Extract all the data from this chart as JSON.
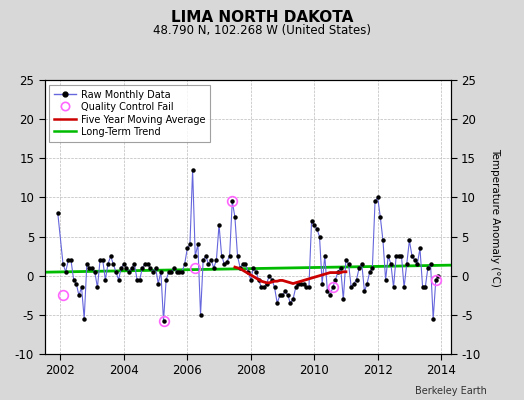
{
  "title": "LIMA NORTH DAKOTA",
  "subtitle": "48.790 N, 102.268 W (United States)",
  "ylabel_right": "Temperature Anomaly (°C)",
  "watermark": "Berkeley Earth",
  "xlim": [
    2001.5,
    2014.3
  ],
  "ylim": [
    -10,
    25
  ],
  "yticks_left": [
    -10,
    -5,
    0,
    5,
    10,
    15,
    20,
    25
  ],
  "yticks_right": [
    -10,
    -5,
    0,
    5,
    10,
    15,
    20,
    25
  ],
  "xticks": [
    2002,
    2004,
    2006,
    2008,
    2010,
    2012,
    2014
  ],
  "bg_color": "#d8d8d8",
  "plot_bg_color": "#ffffff",
  "raw_color": "#6666dd",
  "raw_marker_color": "#000000",
  "qc_fail_color": "#ff66ff",
  "ma_color": "#cc0000",
  "trend_color": "#00bb00",
  "raw_data_x": [
    2001.917,
    2002.083,
    2002.167,
    2002.25,
    2002.333,
    2002.417,
    2002.5,
    2002.583,
    2002.667,
    2002.75,
    2002.833,
    2002.917,
    2003.0,
    2003.083,
    2003.167,
    2003.25,
    2003.333,
    2003.417,
    2003.5,
    2003.583,
    2003.667,
    2003.75,
    2003.833,
    2003.917,
    2004.0,
    2004.083,
    2004.167,
    2004.25,
    2004.333,
    2004.417,
    2004.5,
    2004.583,
    2004.667,
    2004.75,
    2004.833,
    2004.917,
    2005.0,
    2005.083,
    2005.167,
    2005.25,
    2005.333,
    2005.417,
    2005.5,
    2005.583,
    2005.667,
    2005.75,
    2005.833,
    2005.917,
    2006.0,
    2006.083,
    2006.167,
    2006.25,
    2006.333,
    2006.417,
    2006.5,
    2006.583,
    2006.667,
    2006.75,
    2006.833,
    2006.917,
    2007.0,
    2007.083,
    2007.167,
    2007.25,
    2007.333,
    2007.417,
    2007.5,
    2007.583,
    2007.667,
    2007.75,
    2007.833,
    2007.917,
    2008.0,
    2008.083,
    2008.167,
    2008.25,
    2008.333,
    2008.417,
    2008.5,
    2008.583,
    2008.667,
    2008.75,
    2008.833,
    2008.917,
    2009.0,
    2009.083,
    2009.167,
    2009.25,
    2009.333,
    2009.417,
    2009.5,
    2009.583,
    2009.667,
    2009.75,
    2009.833,
    2009.917,
    2010.0,
    2010.083,
    2010.167,
    2010.25,
    2010.333,
    2010.417,
    2010.5,
    2010.583,
    2010.667,
    2010.75,
    2010.833,
    2010.917,
    2011.0,
    2011.083,
    2011.167,
    2011.25,
    2011.333,
    2011.417,
    2011.5,
    2011.583,
    2011.667,
    2011.75,
    2011.833,
    2011.917,
    2012.0,
    2012.083,
    2012.167,
    2012.25,
    2012.333,
    2012.417,
    2012.5,
    2012.583,
    2012.667,
    2012.75,
    2012.833,
    2012.917,
    2013.0,
    2013.083,
    2013.167,
    2013.25,
    2013.333,
    2013.417,
    2013.5,
    2013.583,
    2013.667,
    2013.75,
    2013.833,
    2013.917
  ],
  "raw_data_y": [
    8.0,
    1.5,
    0.5,
    2.0,
    2.0,
    -0.5,
    -1.0,
    -2.5,
    -1.5,
    -5.5,
    1.5,
    1.0,
    1.0,
    0.5,
    -1.5,
    2.0,
    2.0,
    -0.5,
    1.5,
    2.5,
    1.5,
    0.5,
    -0.5,
    1.0,
    1.5,
    1.0,
    0.5,
    1.0,
    1.5,
    -0.5,
    -0.5,
    1.0,
    1.5,
    1.5,
    1.0,
    0.5,
    1.0,
    -1.0,
    0.5,
    -5.8,
    -0.5,
    0.5,
    0.5,
    1.0,
    0.5,
    0.5,
    0.5,
    1.5,
    3.5,
    4.0,
    13.5,
    2.5,
    4.0,
    -5.0,
    2.0,
    2.5,
    1.5,
    2.0,
    1.0,
    2.0,
    6.5,
    2.5,
    1.5,
    1.8,
    2.5,
    9.5,
    7.5,
    2.5,
    1.0,
    1.5,
    1.5,
    0.5,
    -0.5,
    1.0,
    0.5,
    -0.5,
    -1.5,
    -1.5,
    -1.0,
    0.0,
    -0.5,
    -1.5,
    -3.5,
    -2.5,
    -2.5,
    -2.0,
    -2.5,
    -3.5,
    -3.0,
    -1.5,
    -1.0,
    -1.0,
    -1.0,
    -1.5,
    -1.5,
    7.0,
    6.5,
    6.0,
    5.0,
    -1.0,
    2.5,
    -2.0,
    -2.5,
    -1.5,
    -0.5,
    0.5,
    1.0,
    -3.0,
    2.0,
    1.5,
    -1.5,
    -1.0,
    -0.5,
    1.0,
    1.5,
    -2.0,
    -1.0,
    0.5,
    1.0,
    9.5,
    10.0,
    7.5,
    4.5,
    -0.5,
    2.5,
    1.5,
    -1.5,
    2.5,
    2.5,
    2.5,
    -1.5,
    1.5,
    4.5,
    2.5,
    2.0,
    1.5,
    3.5,
    -1.5,
    -1.5,
    1.0,
    1.5,
    -5.5,
    -0.5,
    0.0
  ],
  "qc_fail_x": [
    2002.083,
    2005.25,
    2006.25,
    2007.417,
    2010.583,
    2013.833
  ],
  "qc_fail_y": [
    -2.5,
    -5.8,
    1.0,
    9.5,
    -1.5,
    -0.5
  ],
  "ma_x": [
    2007.5,
    2007.583,
    2007.667,
    2007.75,
    2007.833,
    2007.917,
    2008.0,
    2008.083,
    2008.167,
    2008.25,
    2008.333,
    2008.417,
    2008.5,
    2008.583,
    2008.667,
    2008.75,
    2008.833,
    2008.917,
    2009.0,
    2009.083,
    2009.167,
    2009.25,
    2009.333,
    2009.417,
    2009.5,
    2009.583,
    2009.667,
    2009.75,
    2009.833,
    2009.917,
    2010.0,
    2010.083,
    2010.167,
    2010.25,
    2010.333,
    2010.417,
    2010.5,
    2010.583,
    2010.667,
    2010.75,
    2010.833,
    2010.917,
    2011.0
  ],
  "ma_y": [
    1.1,
    1.0,
    0.9,
    0.7,
    0.5,
    0.3,
    0.1,
    -0.1,
    -0.3,
    -0.5,
    -0.7,
    -0.8,
    -0.9,
    -0.9,
    -0.8,
    -0.7,
    -0.7,
    -0.6,
    -0.6,
    -0.7,
    -0.8,
    -0.9,
    -1.0,
    -0.9,
    -0.8,
    -0.7,
    -0.6,
    -0.5,
    -0.4,
    -0.3,
    -0.2,
    -0.1,
    0.0,
    0.1,
    0.2,
    0.3,
    0.4,
    0.4,
    0.4,
    0.4,
    0.4,
    0.5,
    0.5
  ],
  "trend_x": [
    2001.5,
    2014.3
  ],
  "trend_y": [
    0.45,
    1.35
  ]
}
